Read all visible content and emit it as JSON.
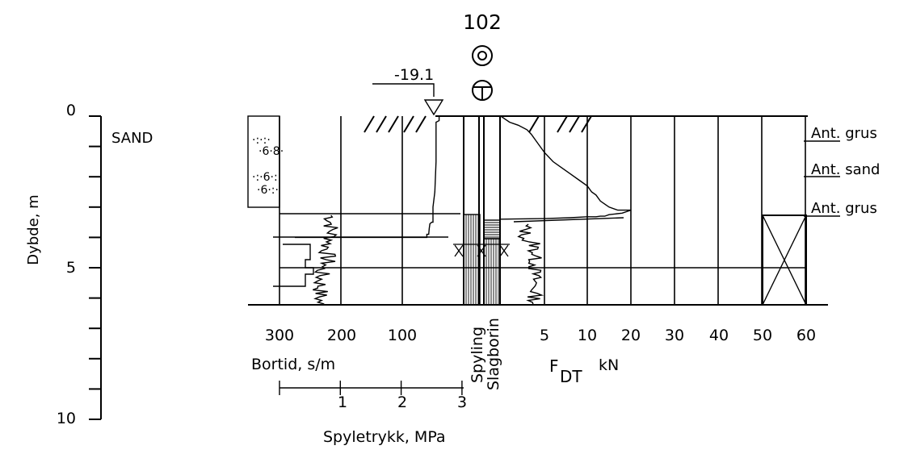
{
  "borehole": {
    "id": "102",
    "water_level": "-19.1",
    "symbols": [
      "circle-dot-icon",
      "circle-t-icon"
    ]
  },
  "depth_axis": {
    "label": "Dybde, m",
    "unit": "m",
    "ticks": [
      0,
      1,
      2,
      3,
      4,
      5,
      6,
      7,
      8,
      9,
      10
    ],
    "tick_labels": [
      "0",
      "5",
      "10"
    ]
  },
  "soil_layers": [
    {
      "label": "SAND",
      "from": 0,
      "to": 3.05
    }
  ],
  "bortid_axis": {
    "label": "Bortid, s/m",
    "ticks": [
      "300",
      "200",
      "100"
    ],
    "values": [
      300,
      200,
      100,
      0
    ]
  },
  "spyletrykk_axis": {
    "label": "Spyletrykk, MPa",
    "ticks": [
      "1",
      "2",
      "3"
    ],
    "values": [
      0,
      1,
      2,
      3
    ]
  },
  "columns": {
    "spyling": "Spyling",
    "slagboring": "Slagborin"
  },
  "force_axis": {
    "label_main": "F",
    "label_sub": "DT",
    "unit": "kN",
    "ticks": [
      "5",
      "10",
      "20",
      "30",
      "40",
      "50",
      "60"
    ],
    "values": [
      0,
      5,
      10,
      20,
      30,
      40,
      50,
      60
    ]
  },
  "sample_labels": [
    {
      "text": "Ant. grus",
      "depth": 0.7
    },
    {
      "text": "Ant. sand",
      "depth": 1.8
    },
    {
      "text": "Ant. grus",
      "depth": 3.2
    }
  ],
  "chart_data": {
    "type": "line",
    "title": "102",
    "ylabel": "Dybde, m",
    "ylim": [
      0,
      10
    ],
    "series": [
      {
        "name": "Bortid, s/m",
        "x": [
          40,
          40,
          45,
          45,
          47,
          50,
          50,
          52,
          55,
          56,
          57,
          60,
          60,
          275,
          275
        ],
        "y": [
          0,
          0.15,
          0.2,
          1.5,
          2.5,
          3.0,
          3.5,
          3.5,
          3.55,
          3.7,
          3.9,
          3.9,
          4.0,
          4.0,
          4.0
        ]
      },
      {
        "name": "F DT kN",
        "x": [
          0,
          0.5,
          1,
          2,
          3,
          3.5,
          4,
          4.5,
          5,
          6,
          7,
          8,
          9,
          10,
          11,
          12,
          13,
          15,
          17,
          20,
          18,
          15,
          14,
          13,
          12,
          10,
          8,
          5,
          0
        ],
        "y": [
          0,
          0.1,
          0.2,
          0.3,
          0.45,
          0.6,
          0.8,
          1.0,
          1.2,
          1.5,
          1.7,
          1.9,
          2.1,
          2.3,
          2.5,
          2.6,
          2.8,
          3.0,
          3.1,
          3.1,
          3.2,
          3.25,
          3.3,
          3.3,
          3.32,
          3.32,
          3.35,
          3.38,
          3.4
        ]
      }
    ]
  }
}
